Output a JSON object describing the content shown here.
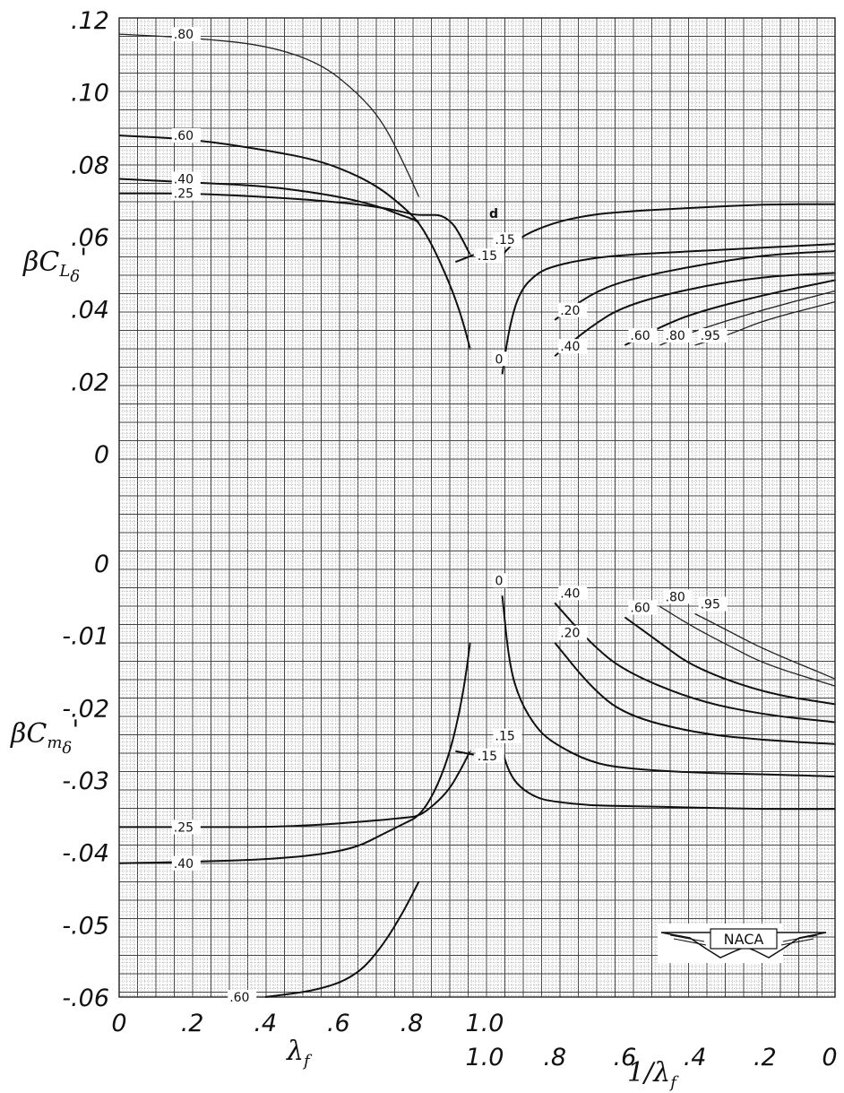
{
  "chart_data": [
    {
      "type": "line",
      "panel": "upper",
      "ylabel": "βC_Lδ'",
      "y_ticks": [
        ".12",
        ".10",
        ".08",
        ".06",
        ".04",
        ".02",
        "0"
      ],
      "ylim": [
        0,
        0.12
      ],
      "parameter_symbol": "d",
      "left_branch": {
        "xlabel": "λf",
        "x_ticks": [
          "0",
          ".2",
          ".4",
          ".6",
          ".8",
          "1.0"
        ],
        "xlim": [
          0,
          1.0
        ],
        "series": [
          {
            "name": ".80",
            "x": [
              0,
              0.2,
              0.4,
              0.55,
              0.65,
              0.72,
              0.78,
              0.82
            ],
            "y": [
              0.116,
              0.115,
              0.113,
              0.108,
              0.1,
              0.092,
              0.08,
              0.071
            ]
          },
          {
            "name": ".60",
            "x": [
              0,
              0.2,
              0.4,
              0.55,
              0.65,
              0.72,
              0.78,
              0.82,
              0.86,
              0.9,
              0.93,
              0.95,
              0.96
            ],
            "y": [
              0.088,
              0.087,
              0.084,
              0.081,
              0.077,
              0.073,
              0.068,
              0.064,
              0.057,
              0.048,
              0.04,
              0.033,
              0.029
            ]
          },
          {
            "name": ".40",
            "x": [
              0,
              0.2,
              0.4,
              0.55,
              0.65,
              0.72,
              0.77,
              0.8,
              0.82
            ],
            "y": [
              0.076,
              0.075,
              0.074,
              0.072,
              0.07,
              0.068,
              0.066,
              0.065,
              0.064
            ]
          },
          {
            "name": ".25",
            "x": [
              0,
              0.2,
              0.4,
              0.55,
              0.65,
              0.72,
              0.77,
              0.81,
              0.85,
              0.88,
              0.91,
              0.93,
              0.96
            ],
            "y": [
              0.072,
              0.072,
              0.071,
              0.07,
              0.069,
              0.068,
              0.067,
              0.066,
              0.066,
              0.066,
              0.064,
              0.061,
              0.055
            ]
          },
          {
            "name": ".15",
            "x": [
              0.92,
              0.97
            ],
            "y": [
              0.053,
              0.055
            ]
          }
        ]
      },
      "right_branch": {
        "xlabel": "1/λf",
        "x_ticks": [
          "1.0",
          ".8",
          ".6",
          ".4",
          ".2",
          "0"
        ],
        "xlim": [
          1.0,
          0
        ],
        "series": [
          {
            "name": ".15",
            "x": [
              0.95,
              0.9,
              0.8,
              0.7,
              0.6,
              0.4,
              0.2,
              0
            ],
            "y": [
              0.055,
              0.06,
              0.064,
              0.066,
              0.067,
              0.068,
              0.069,
              0.069
            ]
          },
          {
            "name": "0",
            "x": [
              0.95,
              0.93,
              0.9,
              0.85,
              0.8,
              0.7,
              0.6,
              0.4,
              0.2,
              0
            ],
            "y": [
              0.022,
              0.035,
              0.045,
              0.05,
              0.052,
              0.054,
              0.055,
              0.056,
              0.057,
              0.058
            ]
          },
          {
            "name": ".20",
            "x": [
              0.8,
              0.7,
              0.6,
              0.4,
              0.2,
              0
            ],
            "y": [
              0.037,
              0.044,
              0.048,
              0.052,
              0.055,
              0.056
            ]
          },
          {
            "name": ".40",
            "x": [
              0.8,
              0.7,
              0.6,
              0.4,
              0.2,
              0
            ],
            "y": [
              0.027,
              0.035,
              0.041,
              0.046,
              0.049,
              0.05
            ]
          },
          {
            "name": ".60",
            "x": [
              0.6,
              0.5,
              0.4,
              0.2,
              0
            ],
            "y": [
              0.03,
              0.035,
              0.039,
              0.044,
              0.048
            ]
          },
          {
            "name": ".80",
            "x": [
              0.5,
              0.4,
              0.2,
              0
            ],
            "y": [
              0.03,
              0.034,
              0.04,
              0.045
            ]
          },
          {
            "name": ".95",
            "x": [
              0.4,
              0.3,
              0.2,
              0
            ],
            "y": [
              0.03,
              0.033,
              0.037,
              0.042
            ]
          }
        ]
      }
    },
    {
      "type": "line",
      "panel": "lower",
      "ylabel": "βC_mδ'",
      "y_ticks": [
        "0",
        "-.01",
        "-.02",
        "-.03",
        "-.04",
        "-.05",
        "-.06"
      ],
      "ylim": [
        -0.06,
        0
      ],
      "parameter_symbol": "d",
      "left_branch": {
        "xlabel": "λf",
        "x_ticks": [
          "0",
          ".2",
          ".4",
          ".6",
          ".8",
          "1.0"
        ],
        "xlim": [
          0,
          1.0
        ],
        "series": [
          {
            "name": ".60",
            "x": [
              0.4,
              0.55,
              0.65,
              0.72,
              0.78,
              0.82
            ],
            "y": [
              -0.06,
              -0.059,
              -0.057,
              -0.053,
              -0.048,
              -0.044
            ]
          },
          {
            "name": ".40",
            "x": [
              0,
              0.2,
              0.4,
              0.55,
              0.65,
              0.72,
              0.78,
              0.82,
              0.86,
              0.9,
              0.93,
              0.95,
              0.96
            ],
            "y": [
              -0.0415,
              -0.0413,
              -0.041,
              -0.0403,
              -0.0393,
              -0.0375,
              -0.036,
              -0.035,
              -0.032,
              -0.027,
              -0.021,
              -0.015,
              -0.011
            ]
          },
          {
            "name": ".25",
            "x": [
              0,
              0.2,
              0.4,
              0.55,
              0.65,
              0.72,
              0.78,
              0.82,
              0.86,
              0.9,
              0.93,
              0.96
            ],
            "y": [
              -0.0365,
              -0.0365,
              -0.0365,
              -0.0362,
              -0.0358,
              -0.0355,
              -0.0352,
              -0.035,
              -0.0335,
              -0.0315,
              -0.029,
              -0.026
            ]
          },
          {
            "name": ".15",
            "x": [
              0.92,
              0.97
            ],
            "y": [
              -0.026,
              -0.0265
            ]
          }
        ]
      },
      "right_branch": {
        "xlabel": "1/λf",
        "x_ticks": [
          "1.0",
          ".8",
          ".6",
          ".4",
          ".2",
          "0"
        ],
        "xlim": [
          1.0,
          0
        ],
        "series": [
          {
            "name": ".15",
            "x": [
              0.95,
              0.93,
              0.9,
              0.85,
              0.8,
              0.7,
              0.6,
              0.4,
              0.2,
              0
            ],
            "y": [
              -0.026,
              -0.029,
              -0.031,
              -0.0325,
              -0.033,
              -0.0335,
              -0.0336,
              -0.0338,
              -0.034,
              -0.034
            ]
          },
          {
            "name": "0",
            "x": [
              0.95,
              0.93,
              0.9,
              0.85,
              0.8,
              0.7,
              0.6,
              0.4,
              0.2,
              0
            ],
            "y": [
              -0.0045,
              -0.014,
              -0.019,
              -0.023,
              -0.025,
              -0.0275,
              -0.0284,
              -0.029,
              -0.0292,
              -0.0295
            ]
          },
          {
            "name": ".20",
            "x": [
              0.8,
              0.7,
              0.6,
              0.4,
              0.2,
              0
            ],
            "y": [
              -0.011,
              -0.017,
              -0.021,
              -0.0235,
              -0.0245,
              -0.025
            ]
          },
          {
            "name": ".40",
            "x": [
              0.8,
              0.7,
              0.6,
              0.4,
              0.2,
              0
            ],
            "y": [
              -0.0055,
              -0.011,
              -0.015,
              -0.019,
              -0.021,
              -0.022
            ]
          },
          {
            "name": ".60",
            "x": [
              0.6,
              0.5,
              0.4,
              0.2,
              0
            ],
            "y": [
              -0.0075,
              -0.011,
              -0.0145,
              -0.018,
              -0.0195
            ]
          },
          {
            "name": ".80",
            "x": [
              0.5,
              0.4,
              0.3,
              0.2,
              0
            ],
            "y": [
              -0.006,
              -0.009,
              -0.0115,
              -0.014,
              -0.017
            ]
          },
          {
            "name": ".95",
            "x": [
              0.4,
              0.3,
              0.2,
              0
            ],
            "y": [
              -0.007,
              -0.0095,
              -0.012,
              -0.016
            ]
          }
        ]
      }
    }
  ],
  "logo": {
    "text": "NACA"
  }
}
